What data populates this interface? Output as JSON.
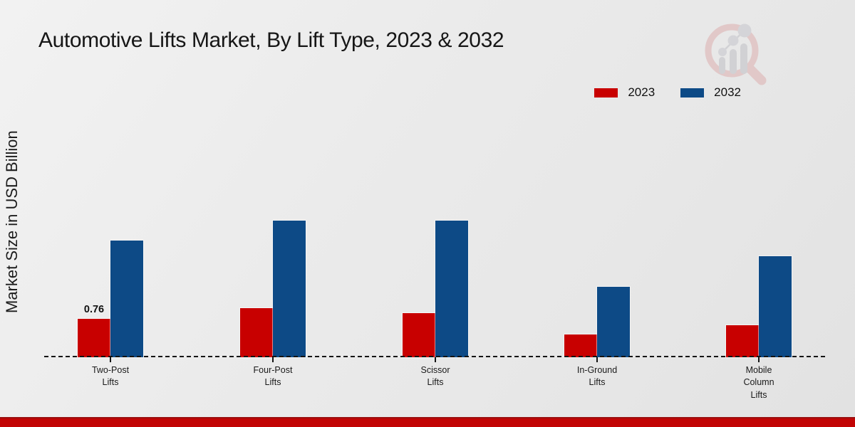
{
  "title": "Automotive Lifts Market, By Lift Type, 2023 & 2032",
  "ylabel": "Market Size in USD Billion",
  "legend": {
    "items": [
      {
        "label": "2023",
        "color": "#c80000"
      },
      {
        "label": "2032",
        "color": "#0d4a86"
      }
    ]
  },
  "watermark": "magnifier-bar-chart-logo",
  "footer_color": "#c20404",
  "chart_data": {
    "type": "bar",
    "title": "Automotive Lifts Market, By Lift Type, 2023 & 2032",
    "xlabel": "",
    "ylabel": "Market Size in USD Billion",
    "categories": [
      "Two-Post\nLifts",
      "Four-Post\nLifts",
      "Scissor\nLifts",
      "In-Ground\nLifts",
      "Mobile\nColumn\nLifts"
    ],
    "series": [
      {
        "name": "2023",
        "color": "#c80000",
        "values": [
          0.76,
          0.97,
          0.87,
          0.45,
          0.63
        ]
      },
      {
        "name": "2032",
        "color": "#0d4a86",
        "values": [
          2.31,
          2.7,
          2.7,
          1.4,
          2.0
        ]
      }
    ],
    "annotations": [
      {
        "category_index": 0,
        "series_index": 0,
        "text": "0.76"
      }
    ],
    "ylim": [
      0,
      3
    ],
    "grid": false,
    "y_axis_ticks_visible": false,
    "baseline_style": "dashed",
    "legend_position": "top-right"
  }
}
